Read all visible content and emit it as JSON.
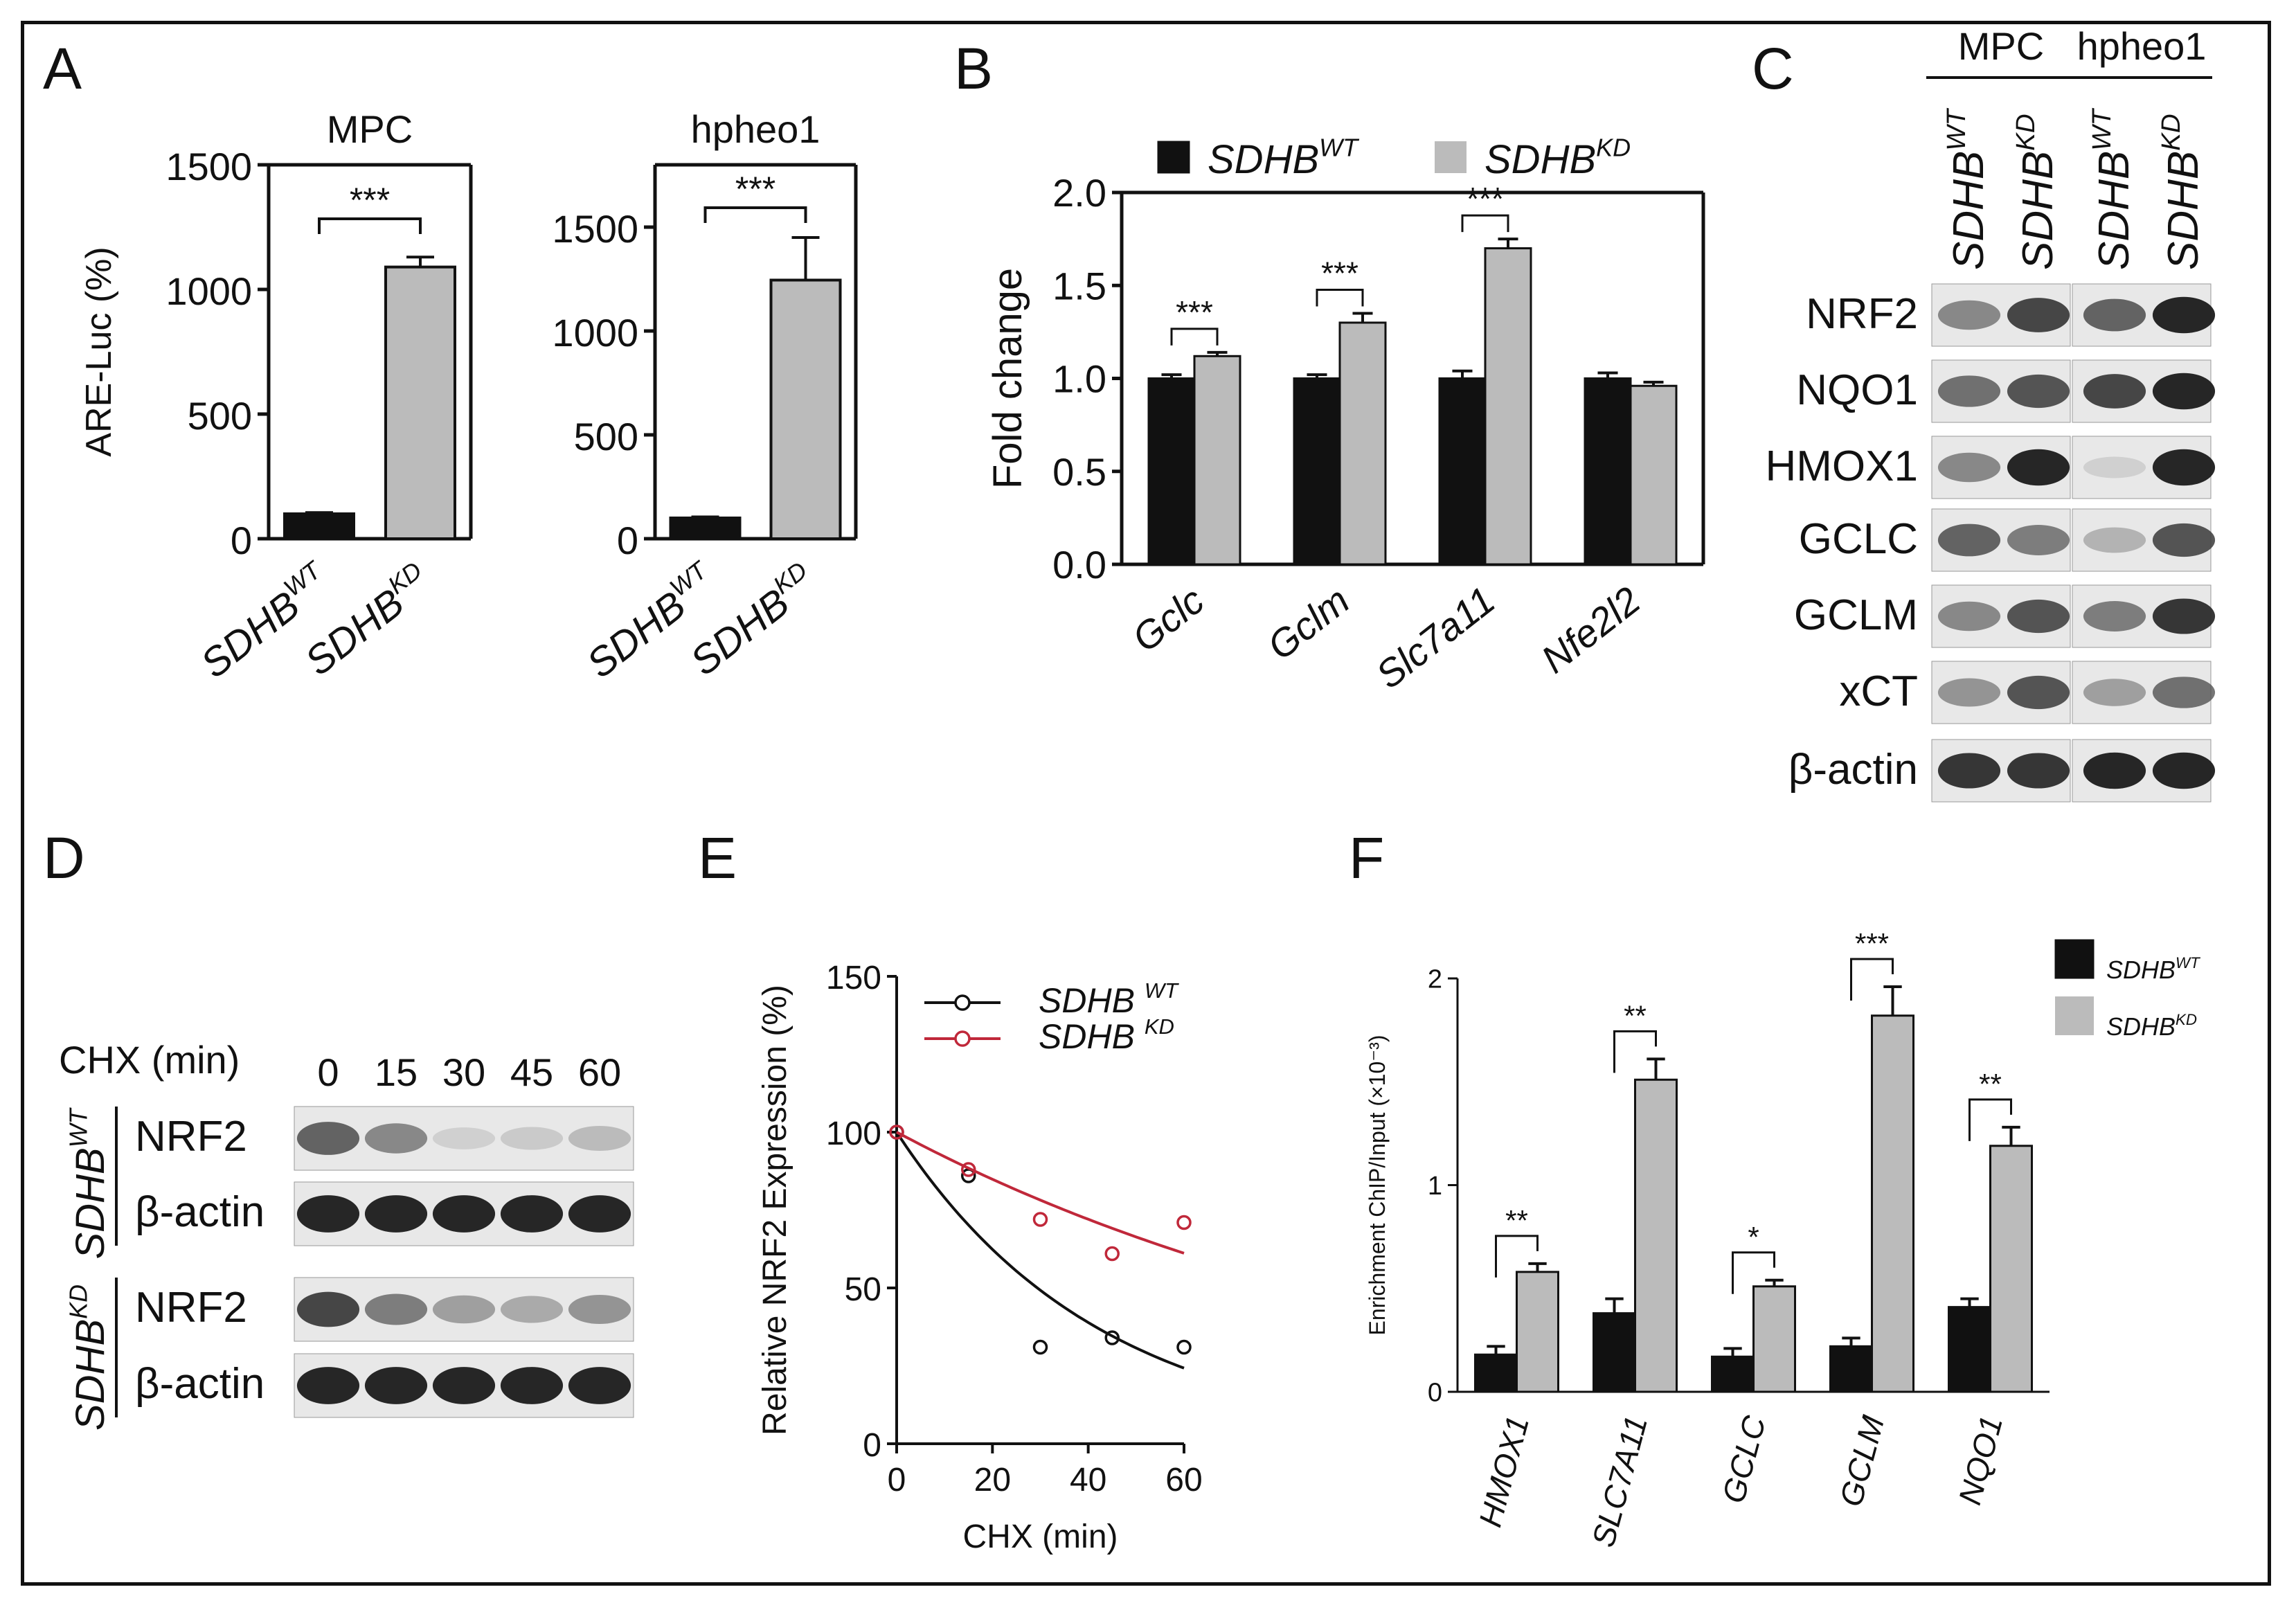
{
  "panel_labels": {
    "A": "A",
    "B": "B",
    "C": "C",
    "D": "D",
    "E": "E",
    "F": "F"
  },
  "chart_data": [
    {
      "id": "A_MPC",
      "type": "bar",
      "title": "MPC",
      "ylabel": "ARE-Luc (%)",
      "categories": [
        [
          "SDHB",
          "WT"
        ],
        [
          "SDHB",
          "KD"
        ]
      ],
      "values": [
        100,
        1090
      ],
      "errors": [
        5,
        40
      ],
      "colors": [
        "#111111",
        "#bbbbbb"
      ],
      "ylim": [
        0,
        1500
      ],
      "yticks": [
        0,
        500,
        1000,
        1500
      ],
      "significance": [
        {
          "pair": [
            0,
            1
          ],
          "label": "***"
        }
      ]
    },
    {
      "id": "A_hpheo1",
      "type": "bar",
      "title": "hpheo1",
      "ylabel": "",
      "categories": [
        [
          "SDHB",
          "WT"
        ],
        [
          "SDHB",
          "KD"
        ]
      ],
      "values": [
        100,
        1245
      ],
      "errors": [
        5,
        205
      ],
      "colors": [
        "#111111",
        "#bbbbbb"
      ],
      "ylim": [
        0,
        1800
      ],
      "yticks": [
        0,
        500,
        1000,
        1500
      ],
      "significance": [
        {
          "pair": [
            0,
            1
          ],
          "label": "***"
        }
      ]
    },
    {
      "id": "B",
      "type": "bar",
      "title": "",
      "ylabel": "Fold change",
      "categories": [
        "Gclc",
        "Gclm",
        "Slc7a11",
        "Nfe2l2"
      ],
      "series": [
        {
          "name": [
            "SDHB",
            "WT"
          ],
          "values": [
            1.0,
            1.0,
            1.0,
            1.0
          ],
          "errors": [
            0.02,
            0.02,
            0.04,
            0.03
          ],
          "color": "#111111"
        },
        {
          "name": [
            "SDHB",
            "KD"
          ],
          "values": [
            1.12,
            1.3,
            1.7,
            0.96
          ],
          "errors": [
            0.02,
            0.05,
            0.05,
            0.02
          ],
          "color": "#bbbbbb"
        }
      ],
      "ylim": [
        0,
        2.0
      ],
      "yticks": [
        "0.0",
        "0.5",
        "1.0",
        "1.5",
        "2.0"
      ],
      "significance": [
        {
          "group": 0,
          "label": "***"
        },
        {
          "group": 1,
          "label": "***"
        },
        {
          "group": 2,
          "label": "***"
        }
      ]
    },
    {
      "id": "E",
      "type": "scatter",
      "title": "",
      "xlabel": "CHX (min)",
      "ylabel": "Relative NRF2 Expression (%)",
      "xlim": [
        0,
        60
      ],
      "ylim": [
        0,
        150
      ],
      "xticks": [
        0,
        20,
        40,
        60
      ],
      "yticks": [
        0,
        50,
        100,
        150
      ],
      "series": [
        {
          "name": [
            "SDHB ",
            "WT"
          ],
          "color": "#111111",
          "x": [
            0,
            15,
            30,
            45,
            60
          ],
          "y": [
            100,
            86,
            31,
            34,
            31
          ],
          "fit_k": 0.0236
        },
        {
          "name": [
            "SDHB ",
            "KD"
          ],
          "color": "#c0283a",
          "x": [
            0,
            15,
            30,
            45,
            60
          ],
          "y": [
            100,
            88,
            72,
            61,
            71
          ],
          "fit_k": 0.0082
        }
      ]
    },
    {
      "id": "F",
      "type": "bar",
      "title": "",
      "ylabel": "Enrichment ChIP/Input (×10⁻³)",
      "categories": [
        "HMOX1",
        "SLC7A11",
        "GCLC",
        "GCLM",
        "NQO1"
      ],
      "series": [
        {
          "name": [
            "SDHB",
            "WT"
          ],
          "values": [
            0.18,
            0.38,
            0.17,
            0.22,
            0.41
          ],
          "errors": [
            0.04,
            0.07,
            0.04,
            0.04,
            0.04
          ],
          "color": "#111111"
        },
        {
          "name": [
            "SDHB",
            "KD"
          ],
          "values": [
            0.58,
            1.51,
            0.51,
            1.82,
            1.19
          ],
          "errors": [
            0.04,
            0.1,
            0.03,
            0.14,
            0.09
          ],
          "color": "#bbbbbb"
        }
      ],
      "ylim": [
        0,
        2
      ],
      "yticks": [
        "0",
        "1",
        "2"
      ],
      "significance": [
        {
          "group": 0,
          "label": "**"
        },
        {
          "group": 1,
          "label": "**"
        },
        {
          "group": 2,
          "label": "*"
        },
        {
          "group": 3,
          "label": "***"
        },
        {
          "group": 4,
          "label": "**"
        }
      ]
    }
  ],
  "blot_C": {
    "groups": [
      "MPC",
      "hpheo1"
    ],
    "lanes": [
      [
        "SDHB",
        "WT"
      ],
      [
        "SDHB",
        "KD"
      ],
      [
        "SDHB",
        "WT"
      ],
      [
        "SDHB",
        "KD"
      ]
    ],
    "rows": [
      {
        "label": "NRF2",
        "intensity": [
          0.6,
          0.85,
          0.75,
          0.95
        ]
      },
      {
        "label": "NQO1",
        "intensity": [
          0.7,
          0.8,
          0.85,
          0.95
        ]
      },
      {
        "label": "HMOX1",
        "intensity": [
          0.6,
          0.95,
          0.2,
          0.95
        ]
      },
      {
        "label": "GCLC",
        "intensity": [
          0.75,
          0.65,
          0.4,
          0.8
        ]
      },
      {
        "label": "GCLM",
        "intensity": [
          0.6,
          0.8,
          0.65,
          0.9
        ]
      },
      {
        "label": "xCT",
        "intensity": [
          0.55,
          0.8,
          0.5,
          0.7
        ]
      },
      {
        "label": "β-actin",
        "intensity": [
          0.9,
          0.9,
          0.95,
          0.95
        ]
      }
    ]
  },
  "blot_D": {
    "cond_label": "CHX (min)",
    "times": [
      "0",
      "15",
      "30",
      "45",
      "60"
    ],
    "groups": [
      {
        "name": [
          "SDHB",
          "WT"
        ],
        "rows": [
          {
            "label": "NRF2",
            "intensity": [
              0.75,
              0.6,
              0.2,
              0.25,
              0.35
            ]
          },
          {
            "label": "β-actin",
            "intensity": [
              0.95,
              0.95,
              0.95,
              0.95,
              0.95
            ]
          }
        ]
      },
      {
        "name": [
          "SDHB",
          "KD"
        ],
        "rows": [
          {
            "label": "NRF2",
            "intensity": [
              0.85,
              0.65,
              0.5,
              0.45,
              0.55
            ]
          },
          {
            "label": "β-actin",
            "intensity": [
              0.95,
              0.95,
              0.95,
              0.95,
              0.95
            ]
          }
        ]
      }
    ]
  }
}
